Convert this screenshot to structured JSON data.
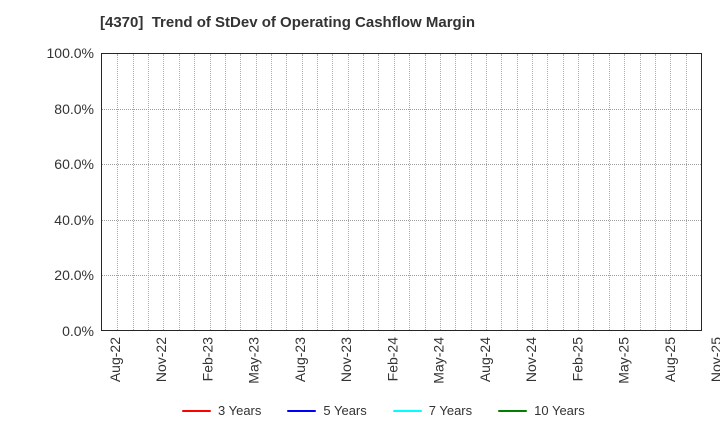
{
  "chart_data": {
    "type": "line",
    "title": "[4370]  Trend of StDev of Operating Cashflow Margin",
    "xlabel": "",
    "ylabel": "",
    "ylim": [
      0,
      100
    ],
    "y_tick_labels": [
      "100.0%",
      "80.0%",
      "60.0%",
      "40.0%",
      "20.0%",
      "0.0%"
    ],
    "y_tick_values": [
      100,
      80,
      60,
      40,
      20,
      0
    ],
    "x_tick_labels": [
      "Aug-22",
      "Nov-22",
      "Feb-23",
      "May-23",
      "Aug-23",
      "Nov-23",
      "Feb-24",
      "May-24",
      "Aug-24",
      "Nov-24",
      "Feb-25",
      "May-25",
      "Aug-25",
      "Nov-25"
    ],
    "x_tick_interval_months": 3,
    "x_total_month_span": 39,
    "grid": true,
    "gridline_style": "dotted",
    "legend_position": "bottom",
    "series": [
      {
        "name": "3 Years",
        "color": "#ff0000",
        "values": []
      },
      {
        "name": "5 Years",
        "color": "#0000ff",
        "values": []
      },
      {
        "name": "7 Years",
        "color": "#00ffff",
        "values": []
      },
      {
        "name": "10 Years",
        "color": "#008000",
        "values": []
      }
    ]
  },
  "colors": {
    "spine": "#262626",
    "grid": "#aaaaaa",
    "text": "#333333",
    "background": "#ffffff"
  }
}
